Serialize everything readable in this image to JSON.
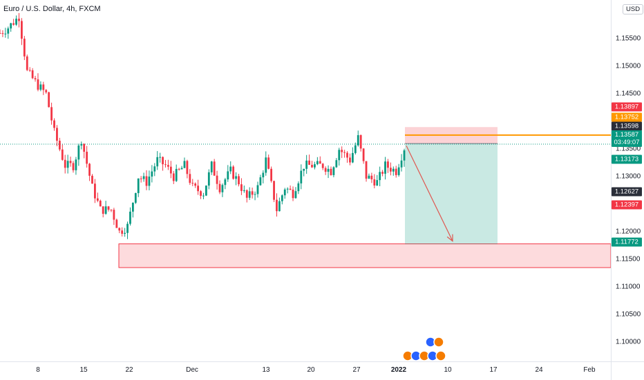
{
  "chart_data": {
    "type": "candlestick",
    "title": "Euro / U.S. Dollar, 4h, FXCM",
    "currency": "USD",
    "y_ticks": [
      "1.15500",
      "1.15000",
      "1.14500",
      "1.14000",
      "1.13500",
      "1.13000",
      "1.12500",
      "1.12000",
      "1.11500",
      "1.11000",
      "1.10500",
      "1.10000"
    ],
    "x_ticks": [
      {
        "label": "8",
        "bold": false
      },
      {
        "label": "15",
        "bold": false
      },
      {
        "label": "22",
        "bold": false
      },
      {
        "label": "Dec",
        "bold": false
      },
      {
        "label": "13",
        "bold": false
      },
      {
        "label": "20",
        "bold": false
      },
      {
        "label": "27",
        "bold": false
      },
      {
        "label": "2022",
        "bold": true
      },
      {
        "label": "10",
        "bold": false
      },
      {
        "label": "17",
        "bold": false
      },
      {
        "label": "24",
        "bold": false
      },
      {
        "label": "Feb",
        "bold": false
      }
    ],
    "ylim": [
      1.0965,
      1.162
    ],
    "price_path": [
      {
        "t": "Nov 5",
        "p": 1.156
      },
      {
        "t": "Nov 8",
        "p": 1.157
      },
      {
        "t": "Nov 9",
        "p": 1.159
      },
      {
        "t": "Nov 10",
        "p": 1.149
      },
      {
        "t": "Nov 11",
        "p": 1.1465
      },
      {
        "t": "Nov 12",
        "p": 1.145
      },
      {
        "t": "Nov 15",
        "p": 1.138
      },
      {
        "t": "Nov 16",
        "p": 1.132
      },
      {
        "t": "Nov 17",
        "p": 1.132
      },
      {
        "t": "Nov 18",
        "p": 1.1368
      },
      {
        "t": "Nov 19",
        "p": 1.128
      },
      {
        "t": "Nov 22",
        "p": 1.124
      },
      {
        "t": "Nov 23",
        "p": 1.124
      },
      {
        "t": "Nov 24",
        "p": 1.12
      },
      {
        "t": "Nov 25",
        "p": 1.121
      },
      {
        "t": "Nov 26",
        "p": 1.13
      },
      {
        "t": "Nov 29",
        "p": 1.129
      },
      {
        "t": "Nov 30",
        "p": 1.133
      },
      {
        "t": "Dec 1",
        "p": 1.132
      },
      {
        "t": "Dec 2",
        "p": 1.13
      },
      {
        "t": "Dec 3",
        "p": 1.132
      },
      {
        "t": "Dec 6",
        "p": 1.128
      },
      {
        "t": "Dec 7",
        "p": 1.127
      },
      {
        "t": "Dec 8",
        "p": 1.132
      },
      {
        "t": "Dec 9",
        "p": 1.128
      },
      {
        "t": "Dec 10",
        "p": 1.131
      },
      {
        "t": "Dec 13",
        "p": 1.129
      },
      {
        "t": "Dec 14",
        "p": 1.126
      },
      {
        "t": "Dec 15",
        "p": 1.128
      },
      {
        "t": "Dec 16",
        "p": 1.133
      },
      {
        "t": "Dec 17",
        "p": 1.124
      },
      {
        "t": "Dec 20",
        "p": 1.128
      },
      {
        "t": "Dec 21",
        "p": 1.127
      },
      {
        "t": "Dec 22",
        "p": 1.132
      },
      {
        "t": "Dec 23",
        "p": 1.132
      },
      {
        "t": "Dec 27",
        "p": 1.132
      },
      {
        "t": "Dec 28",
        "p": 1.131
      },
      {
        "t": "Dec 29",
        "p": 1.135
      },
      {
        "t": "Dec 30",
        "p": 1.133
      },
      {
        "t": "Dec 31",
        "p": 1.137
      },
      {
        "t": "Jan 3",
        "p": 1.13
      },
      {
        "t": "Jan 4",
        "p": 1.129
      },
      {
        "t": "Jan 5",
        "p": 1.132
      },
      {
        "t": "Jan 6",
        "p": 1.131
      },
      {
        "t": "Jan 7",
        "p": 1.1352
      }
    ],
    "labels": [
      {
        "value": "1.13897",
        "color": "#f23645"
      },
      {
        "value": "1.13752",
        "color": "#ff9800"
      },
      {
        "value": "1.13598",
        "color": "#2a2e39"
      },
      {
        "value": "1.13587",
        "color": "#089981",
        "countdown": "03:49:07"
      },
      {
        "value": "1.13173",
        "color": "#089981"
      },
      {
        "value": "1.12627",
        "color": "#2a2e39"
      },
      {
        "value": "1.12397",
        "color": "#f23645"
      },
      {
        "value": "1.11772",
        "color": "#089981"
      }
    ],
    "position": {
      "type": "short",
      "entry": 1.13598,
      "stop": 1.13897,
      "target": 1.11772
    },
    "horizontal_line": {
      "price": 1.13752,
      "color": "#ff9800"
    },
    "zone": {
      "top": 1.1178,
      "bottom": 1.1135,
      "color": "#f23645"
    },
    "colors": {
      "up": "#089981",
      "down": "#f23645",
      "profit": "#089981",
      "loss": "#f23645"
    },
    "grid": false
  }
}
